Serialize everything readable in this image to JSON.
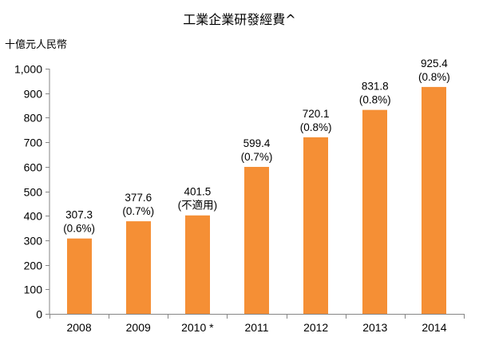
{
  "chart_data": {
    "type": "bar",
    "title": "工業企業研發經費^",
    "ylabel": "十億元人民幣",
    "xlabel": "",
    "categories": [
      "2008",
      "2009",
      "2010 *",
      "2011",
      "2012",
      "2013",
      "2014"
    ],
    "values": [
      307.3,
      377.6,
      401.5,
      599.4,
      720.1,
      831.8,
      925.4
    ],
    "value_labels": [
      "307.3",
      "377.6",
      "401.5",
      "599.4",
      "720.1",
      "831.8",
      "925.4"
    ],
    "secondary_labels": [
      "(0.6%)",
      "(0.7%)",
      "(不適用)",
      "(0.7%)",
      "(0.8%)",
      "(0.8%)",
      "(0.8%)"
    ],
    "ylim": [
      0,
      1000
    ],
    "yticks": [
      0,
      100,
      200,
      300,
      400,
      500,
      600,
      700,
      800,
      900,
      1000
    ],
    "ytick_labels": [
      "0",
      "100",
      "200",
      "300",
      "400",
      "500",
      "600",
      "700",
      "800",
      "900",
      "1,000"
    ],
    "grid": false,
    "bar_color": "#F58F35",
    "axis_color": "#868686"
  }
}
